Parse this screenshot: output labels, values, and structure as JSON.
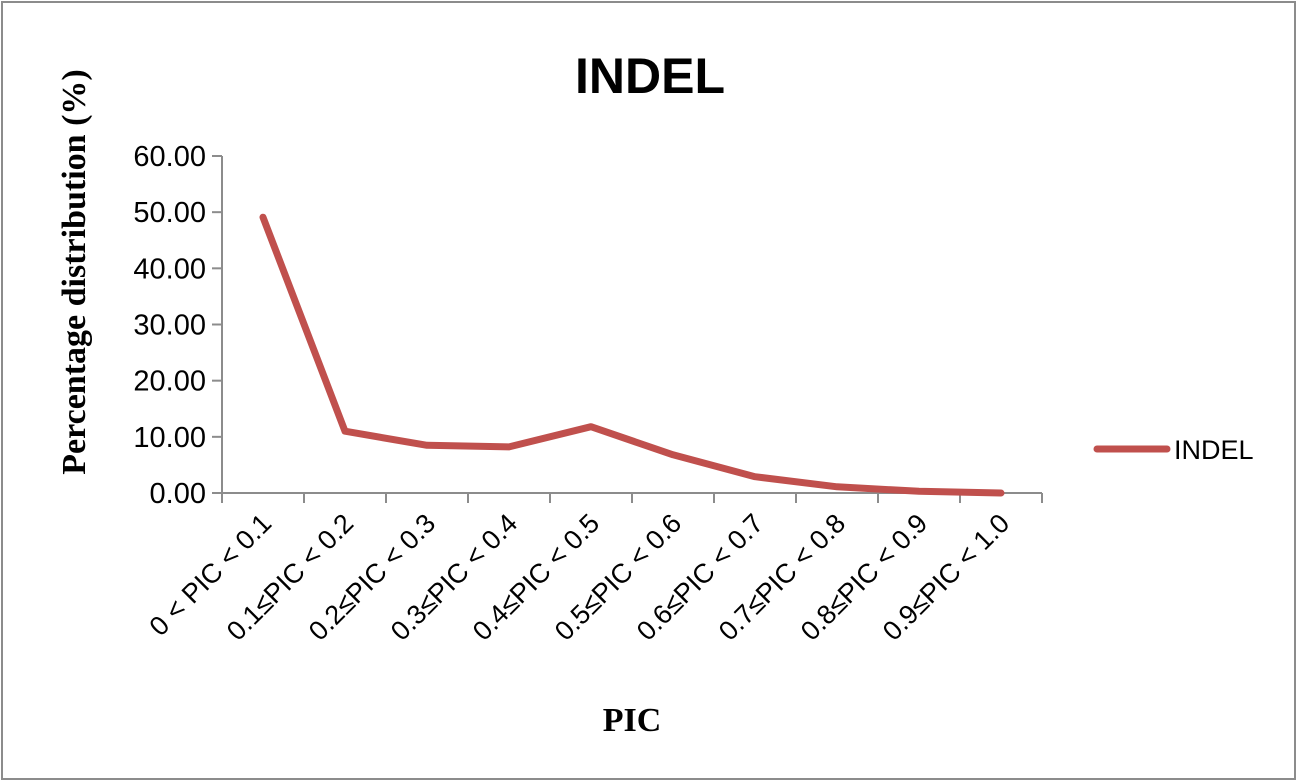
{
  "chart_data": {
    "type": "line",
    "title": "INDEL",
    "xlabel": "PIC",
    "ylabel": "Percentage distribution (%)",
    "categories": [
      "0 < PIC < 0.1",
      "0.1≤PIC < 0.2",
      "0.2≤PIC < 0.3",
      "0.3≤PIC < 0.4",
      "0.4≤PIC < 0.5",
      "0.5≤PIC < 0.6",
      "0.6≤PIC < 0.7",
      "0.7≤PIC < 0.8",
      "0.8≤PIC < 0.9",
      "0.9≤PIC < 1.0"
    ],
    "series": [
      {
        "name": "INDEL",
        "color": "#c0504d",
        "values": [
          49.1,
          11.0,
          8.5,
          8.2,
          11.8,
          6.8,
          2.9,
          1.1,
          0.3,
          0.0
        ]
      }
    ],
    "ylim": [
      0,
      60
    ],
    "yticks": [
      "0.00",
      "10.00",
      "20.00",
      "30.00",
      "40.00",
      "50.00",
      "60.00"
    ],
    "grid": false,
    "legend_position": "right"
  }
}
